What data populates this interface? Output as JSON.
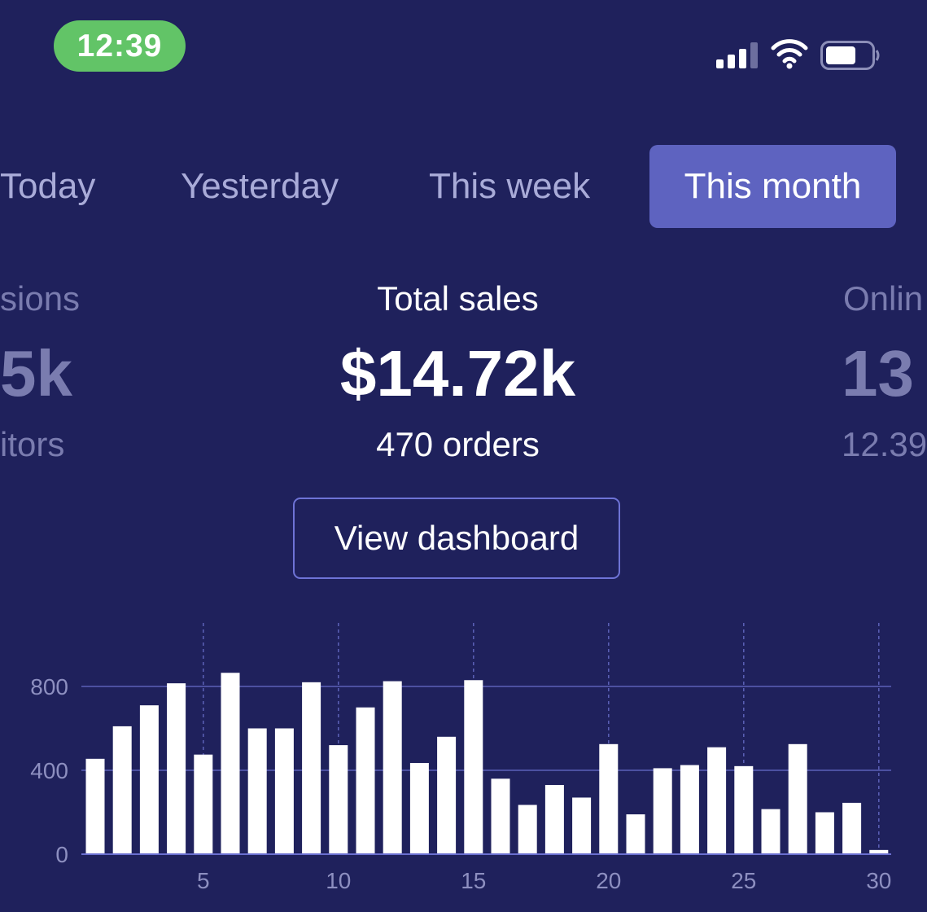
{
  "status_bar": {
    "time": "12:39"
  },
  "tabs": [
    {
      "label": "Today",
      "active": false
    },
    {
      "label": "Yesterday",
      "active": false
    },
    {
      "label": "This week",
      "active": false
    },
    {
      "label": "This month",
      "active": true
    }
  ],
  "stats": {
    "left": {
      "label": "sions",
      "value": "5k",
      "sub": "itors"
    },
    "center": {
      "label": "Total sales",
      "value": "$14.72k",
      "sub": "470 orders"
    },
    "right": {
      "label": "Onlin",
      "value": "13",
      "sub": "12.39"
    }
  },
  "view_dashboard_label": "View dashboard",
  "colors": {
    "background": "#1f215c",
    "accent": "#5e63c0",
    "status_green": "#62c467",
    "bar": "#ffffff"
  },
  "chart_data": {
    "type": "bar",
    "x": [
      1,
      2,
      3,
      4,
      5,
      6,
      7,
      8,
      9,
      10,
      11,
      12,
      13,
      14,
      15,
      16,
      17,
      18,
      19,
      20,
      21,
      22,
      23,
      24,
      25,
      26,
      27,
      28,
      29,
      30
    ],
    "values": [
      455,
      610,
      710,
      815,
      475,
      865,
      600,
      600,
      820,
      520,
      700,
      825,
      435,
      560,
      830,
      360,
      235,
      330,
      270,
      525,
      190,
      410,
      425,
      510,
      420,
      215,
      525,
      200,
      245,
      20
    ],
    "xticks": [
      "5",
      "10",
      "15",
      "20",
      "25",
      "30"
    ],
    "xtick_values": [
      5,
      10,
      15,
      20,
      25,
      30
    ],
    "yticks": [
      "0",
      "400",
      "800"
    ],
    "ytick_values": [
      0,
      400,
      800
    ],
    "ylim": [
      0,
      1100
    ],
    "grid": true
  }
}
